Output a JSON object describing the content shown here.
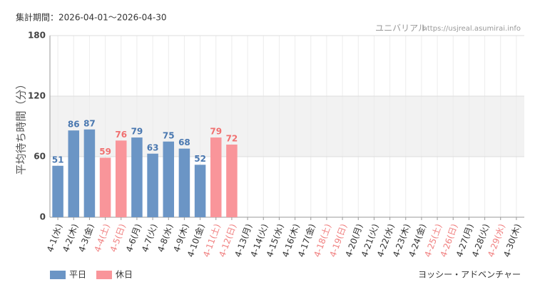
{
  "chart_data": {
    "type": "bar",
    "period": "集計期間：2026-04-01〜2026-04-30",
    "site_name": "ユニバリアル",
    "site_url": "https://usjreal.asumirai.info",
    "y_label": "平均待ち時間（分）",
    "subject": "ヨッシー・アドベンチャー",
    "categories": [
      "4-1(水)",
      "4-2(木)",
      "4-3(金)",
      "4-4(土)",
      "4-5(日)",
      "4-6(月)",
      "4-7(火)",
      "4-8(水)",
      "4-9(木)",
      "4-10(金)",
      "4-11(土)",
      "4-12(日)",
      "4-13(月)",
      "4-14(火)",
      "4-15(水)",
      "4-16(木)",
      "4-17(金)",
      "4-18(土)",
      "4-19(日)",
      "4-20(月)",
      "4-21(火)",
      "4-22(水)",
      "4-23(木)",
      "4-24(金)",
      "4-25(土)",
      "4-26(日)",
      "4-27(月)",
      "4-28(火)",
      "4-29(水)",
      "4-30(木)"
    ],
    "category_colors": [
      "#333",
      "#333",
      "#333",
      "#f08080",
      "#f08080",
      "#333",
      "#333",
      "#333",
      "#333",
      "#333",
      "#f08080",
      "#f08080",
      "#333",
      "#333",
      "#333",
      "#333",
      "#333",
      "#f08080",
      "#f08080",
      "#333",
      "#333",
      "#333",
      "#333",
      "#333",
      "#f08080",
      "#f08080",
      "#333",
      "#333",
      "#f08080",
      "#333"
    ],
    "series": [
      {
        "name": "平日",
        "color": "#6b95c5",
        "label_color": "#4a78b0",
        "values": [
          51,
          86,
          87,
          null,
          null,
          79,
          63,
          75,
          68,
          52,
          null,
          null,
          null,
          null,
          null,
          null,
          null,
          null,
          null,
          null,
          null,
          null,
          null,
          null,
          null,
          null,
          null,
          null,
          null,
          null
        ]
      },
      {
        "name": "休日",
        "color": "#f9959a",
        "label_color": "#f07070",
        "values": [
          null,
          null,
          null,
          59,
          76,
          null,
          null,
          null,
          null,
          null,
          79,
          72,
          null,
          null,
          null,
          null,
          null,
          null,
          null,
          null,
          null,
          null,
          null,
          null,
          null,
          null,
          null,
          null,
          null,
          null
        ]
      }
    ],
    "ylim": [
      0,
      180
    ],
    "yticks": [
      0,
      60,
      120,
      180
    ],
    "shaded_range": [
      60,
      120
    ],
    "grid": true
  }
}
